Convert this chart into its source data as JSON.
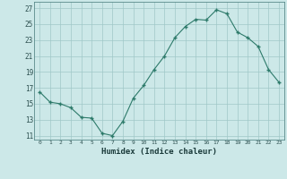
{
  "x": [
    0,
    1,
    2,
    3,
    4,
    5,
    6,
    7,
    8,
    9,
    10,
    11,
    12,
    13,
    14,
    15,
    16,
    17,
    18,
    19,
    20,
    21,
    22,
    23
  ],
  "y": [
    16.5,
    15.2,
    15.0,
    14.5,
    13.3,
    13.2,
    11.3,
    11.0,
    12.8,
    15.7,
    17.3,
    19.3,
    21.0,
    23.3,
    24.7,
    25.6,
    25.5,
    26.8,
    26.3,
    24.0,
    23.3,
    22.2,
    19.3,
    17.7
  ],
  "xlabel": "Humidex (Indice chaleur)",
  "ylim": [
    10.5,
    27.8
  ],
  "xlim": [
    -0.5,
    23.5
  ],
  "yticks": [
    11,
    13,
    15,
    17,
    19,
    21,
    23,
    25,
    27
  ],
  "xticks": [
    0,
    1,
    2,
    3,
    4,
    5,
    6,
    7,
    8,
    9,
    10,
    11,
    12,
    13,
    14,
    15,
    16,
    17,
    18,
    19,
    20,
    21,
    22,
    23
  ],
  "line_color": "#2d7a6a",
  "marker_color": "#2d7a6a",
  "bg_color": "#cce8e8",
  "grid_color": "#a0c8c8",
  "tick_label_color": "#2d5050",
  "xlabel_color": "#1a3a3a",
  "fig_bg": "#cce8e8"
}
